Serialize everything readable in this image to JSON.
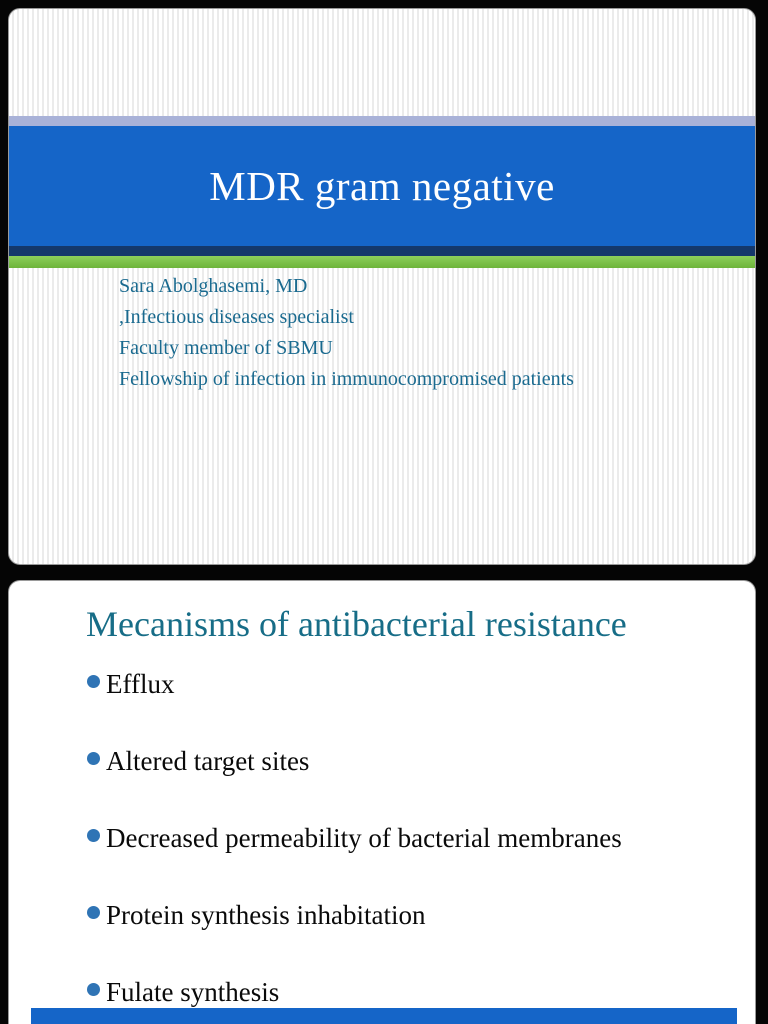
{
  "slide1": {
    "title": "MDR gram negative",
    "author_lines": [
      "Sara Abolghasemi, MD",
      ",Infectious diseases specialist",
      "Faculty member of SBMU",
      "Fellowship of infection in immunocompromised patients"
    ],
    "colors": {
      "title_bar_blue": "#1565c8",
      "accent_lavender": "#a9b2d8",
      "accent_navy": "#14386b",
      "accent_green": "#72bf44",
      "byline_text": "#1a6a8f",
      "title_text": "#ffffff"
    }
  },
  "slide2": {
    "title": "Mecanisms of antibacterial resistance",
    "bullets": [
      "Efflux",
      "Altered target sites",
      "Decreased permeability of bacterial membranes",
      "Protein synthesis inhabitation",
      "Fulate synthesis"
    ],
    "colors": {
      "title_text": "#176d87",
      "bullet_dot": "#2f74b5",
      "body_text": "#0a0a0a"
    }
  },
  "page": {
    "background": "#050505"
  }
}
